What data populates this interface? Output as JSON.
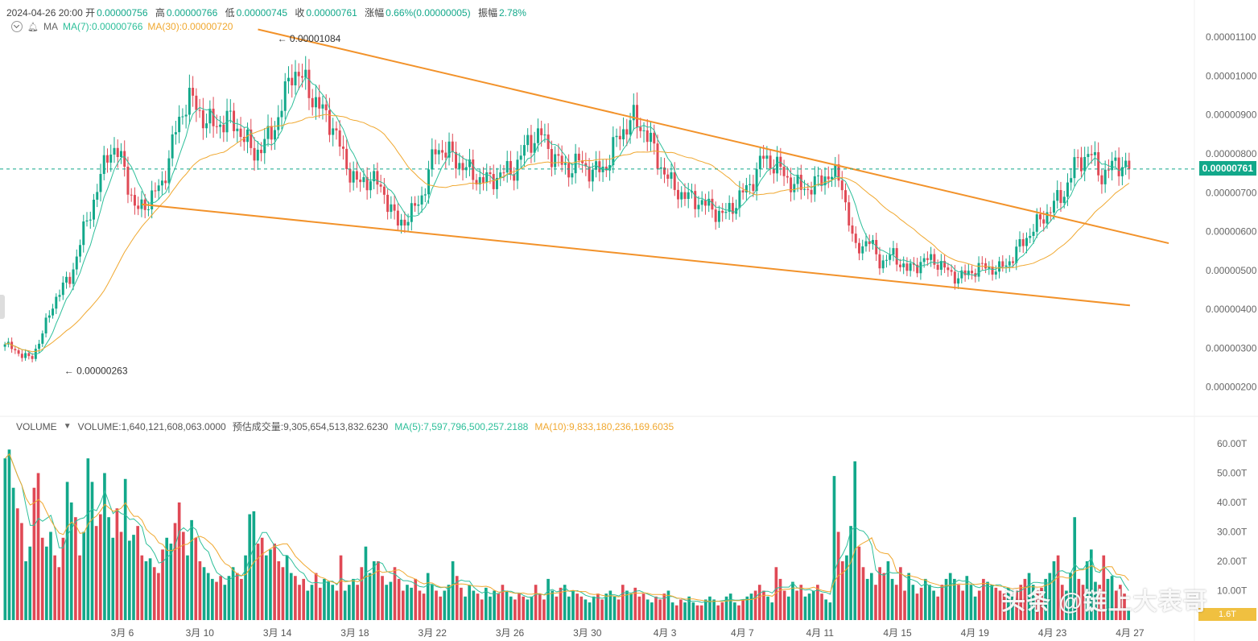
{
  "header": {
    "datetime": "2024-04-26 20:00",
    "open_label": "开",
    "open": "0.00000756",
    "high_label": "高",
    "high": "0.00000766",
    "low_label": "低",
    "low": "0.00000745",
    "close_label": "收",
    "close": "0.00000761",
    "change_label": "涨幅",
    "change": "0.66%(0.00000005)",
    "amplitude_label": "振幅",
    "amplitude": "2.78%"
  },
  "ma_bar": {
    "indicator": "MA",
    "ma7": "MA(7):0.00000766",
    "ma30": "MA(30):0.00000720"
  },
  "volume_bar": {
    "name": "VOLUME",
    "volume": "VOLUME:1,640,121,608,063.0000",
    "estimate": "预估成交量:9,305,654,513,832.6230",
    "ma5": "MA(5):7,597,796,500,257.2188",
    "ma10": "MA(10):9,833,180,236,169.6035"
  },
  "price_tag": "0.00000761",
  "volume_tag": "1.6T",
  "watermark": "头条 @链上大表哥",
  "colors": {
    "up": "#12a88a",
    "down": "#e04955",
    "ma_short": "#2dbf9a",
    "ma_long": "#f0a830",
    "trendline": "#f2922a"
  },
  "chart_data": [
    {
      "type": "candlestick",
      "title": "",
      "y_axis_ticks": [
        "0.00001100",
        "0.00001000",
        "0.00000900",
        "0.00000800",
        "0.00000700",
        "0.00000600",
        "0.00000500",
        "0.00000400",
        "0.00000300",
        "0.00000200"
      ],
      "ylim": [
        1.6e-06,
        1.15e-05
      ],
      "x_axis_ticks": [
        "3月 6",
        "3月 10",
        "3月 14",
        "3月 18",
        "3月 22",
        "3月 26",
        "3月 30",
        "4月 3",
        "4月 7",
        "4月 11",
        "4月 15",
        "4月 19",
        "4月 23",
        "4月 27"
      ],
      "annotations": [
        {
          "label": "← 0.00001084",
          "value": 1.084e-05,
          "date": "3月 14"
        },
        {
          "label": "← 0.00000263",
          "value": 2.63e-06,
          "date": "3月 3"
        }
      ],
      "current_price": 7.61e-06,
      "close_series_4h": [
        3.1e-06,
        2.9e-06,
        2.7e-06,
        3.5e-06,
        4.4e-06,
        4.8e-06,
        6e-06,
        7e-06,
        8.2e-06,
        7.8e-06,
        6.5e-06,
        6.8e-06,
        7.2e-06,
        8.5e-06,
        9.5e-06,
        9e-06,
        8.7e-06,
        8.9e-06,
        8.6e-06,
        8e-06,
        8.3e-06,
        9e-06,
        1.02e-05,
        9.8e-06,
        9.2e-06,
        8.8e-06,
        7.8e-06,
        7.2e-06,
        7.4e-06,
        7e-06,
        6.2e-06,
        6.4e-06,
        7e-06,
        8.2e-06,
        8e-06,
        7.7e-06,
        7.4e-06,
        7.3e-06,
        7.5e-06,
        7.6e-06,
        8.3e-06,
        8.5e-06,
        7.9e-06,
        7.6e-06,
        7.8e-06,
        7.5e-06,
        7.7e-06,
        8.5e-06,
        8.9e-06,
        8.6e-06,
        7.8e-06,
        7.2e-06,
        6.9e-06,
        6.8e-06,
        6.6e-06,
        6.4e-06,
        6.8e-06,
        7.2e-06,
        7.9e-06,
        7.7e-06,
        7.3e-06,
        7.1e-06,
        7.2e-06,
        7.5e-06,
        7.3e-06,
        5.5e-06,
        5.8e-06,
        5.2e-06,
        5.4e-06,
        5e-06,
        5.2e-06,
        5.3e-06,
        5e-06,
        4.8e-06,
        5e-06,
        5.1e-06,
        5e-06,
        5.3e-06,
        5.8e-06,
        6.2e-06,
        6.6e-06,
        7e-06,
        7.8e-06,
        8e-06,
        7.4e-06,
        7.8e-06,
        7.6e-06
      ],
      "trendlines": [
        {
          "name": "upper",
          "from": {
            "date": "3月 13",
            "value": 1.12e-05
          },
          "to": {
            "date": "4月 28",
            "value": 5.7e-06
          }
        },
        {
          "name": "lower",
          "from": {
            "date": "3月 7",
            "value": 6.7e-06
          },
          "to": {
            "date": "4月 26",
            "value": 4.1e-06
          }
        }
      ],
      "series": [
        {
          "name": "MA(7)",
          "color": "#2dbf9a"
        },
        {
          "name": "MA(30)",
          "color": "#f0a830"
        }
      ]
    },
    {
      "type": "bar",
      "title": "",
      "y_axis_ticks": [
        "60.00T",
        "50.00T",
        "40.00T",
        "30.00T",
        "20.00T",
        "10.00T"
      ],
      "ylim": [
        0,
        63
      ],
      "unit": "T",
      "values": [
        55,
        58,
        45,
        38,
        33,
        20,
        25,
        45,
        50,
        28,
        25,
        30,
        22,
        18,
        28,
        47,
        40,
        35,
        22,
        30,
        55,
        47,
        32,
        36,
        50,
        35,
        28,
        38,
        30,
        48,
        27,
        29,
        32,
        22,
        20,
        21,
        18,
        16,
        24,
        28,
        26,
        33,
        40,
        30,
        22,
        34,
        28,
        20,
        18,
        16,
        14,
        13,
        15,
        12,
        15,
        18,
        16,
        14,
        22,
        36,
        37,
        26,
        28,
        22,
        24,
        26,
        20,
        18,
        22,
        16,
        15,
        12,
        14,
        10,
        12,
        16,
        11,
        14,
        13,
        12,
        10,
        22,
        10,
        12,
        14,
        12,
        18,
        25,
        16,
        20,
        20,
        15,
        12,
        13,
        18,
        14,
        10,
        12,
        11,
        14,
        10,
        9,
        16,
        12,
        10,
        8,
        10,
        12,
        20,
        15,
        11,
        8,
        12,
        10,
        9,
        7,
        11,
        8,
        10,
        9,
        12,
        10,
        8,
        7,
        9,
        8,
        7,
        8,
        12,
        9,
        7,
        14,
        10,
        8,
        11,
        12,
        8,
        10,
        9,
        8,
        7,
        6,
        8,
        9,
        7,
        9,
        10,
        8,
        7,
        12,
        10,
        9,
        11,
        8,
        9,
        7,
        6,
        8,
        7,
        9,
        10,
        6,
        5,
        7,
        6,
        8,
        6,
        5,
        5,
        7,
        8,
        7,
        5,
        6,
        8,
        9,
        6,
        5,
        7,
        8,
        9,
        10,
        12,
        10,
        8,
        6,
        18,
        14,
        10,
        8,
        13,
        10,
        12,
        8,
        9,
        10,
        12,
        9,
        7,
        6,
        49,
        30,
        20,
        22,
        32,
        54,
        25,
        18,
        14,
        16,
        12,
        18,
        16,
        20,
        14,
        12,
        18,
        10,
        16,
        12,
        9,
        11,
        14,
        12,
        10,
        8,
        12,
        14,
        16,
        14,
        12,
        10,
        15,
        12,
        8,
        10,
        14,
        13,
        12,
        11,
        10,
        9,
        11,
        8,
        10,
        12,
        14,
        16,
        12,
        10,
        11,
        14,
        16,
        20,
        22,
        12,
        10,
        16,
        35,
        14,
        12,
        20,
        24,
        13,
        12,
        22,
        14,
        15,
        10,
        12,
        9,
        4
      ]
    }
  ]
}
